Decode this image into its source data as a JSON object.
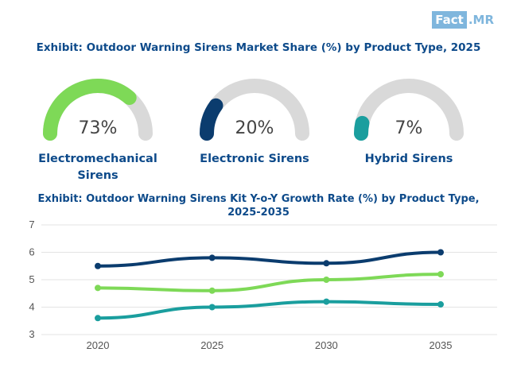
{
  "logo": {
    "part1": "Fact",
    "part2": ".MR"
  },
  "gauge_title": "Exhibit: Outdoor Warning Sirens Market Share (%) by Product Type, 2025",
  "gauges": [
    {
      "label": "Electromechanical Sirens",
      "label_line1": "Electromechanical",
      "label_line2": "Sirens",
      "value": 73,
      "value_text": "73%",
      "color": "#7ed957"
    },
    {
      "label": "Electronic Sirens",
      "label_line1": "Electronic Sirens",
      "label_line2": "",
      "value": 20,
      "value_text": "20%",
      "color": "#0b3c6e"
    },
    {
      "label": "Hybrid Sirens",
      "label_line1": "Hybrid Sirens",
      "label_line2": "",
      "value": 7,
      "value_text": "7%",
      "color": "#1a9e9e"
    }
  ],
  "gauge_track_color": "#d9d9d9",
  "chart_data": {
    "type": "line",
    "title": "Exhibit: Outdoor Warning Sirens Kit Y-o-Y Growth Rate (%) by Product Type, 2025-2035",
    "title_line1": "Exhibit: Outdoor Warning Sirens Kit Y-o-Y Growth Rate (%) by Product Type,",
    "title_line2": "2025-2035",
    "x": [
      "2020",
      "2025",
      "2030",
      "2035"
    ],
    "y_ticks": [
      "3",
      "4",
      "5",
      "6",
      "7"
    ],
    "ylim": [
      3,
      7
    ],
    "xlabel": "",
    "ylabel": "",
    "grid": true,
    "series": [
      {
        "name": "Electronic Sirens",
        "color": "#0b3c6e",
        "values": [
          5.5,
          5.8,
          5.6,
          6.0
        ]
      },
      {
        "name": "Electromechanical Sirens",
        "color": "#7ed957",
        "values": [
          4.7,
          4.6,
          5.0,
          5.2
        ]
      },
      {
        "name": "Hybrid Sirens",
        "color": "#1a9e9e",
        "values": [
          3.6,
          4.0,
          4.2,
          4.1
        ]
      }
    ]
  }
}
